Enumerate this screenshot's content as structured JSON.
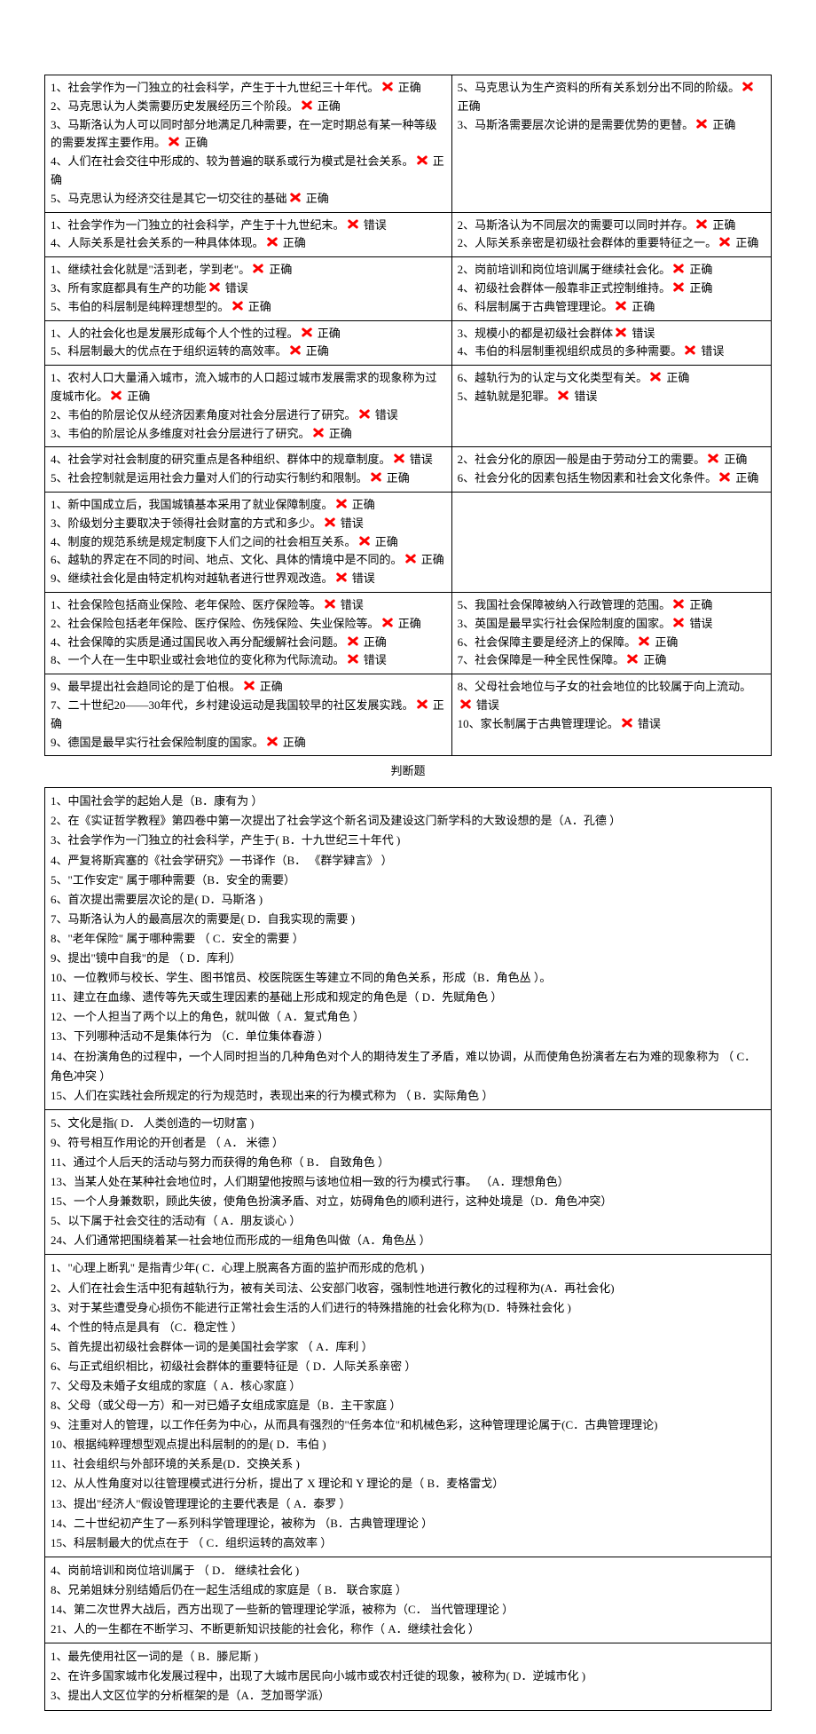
{
  "caption": "判断题",
  "mark_color": "#ff0000",
  "tf_answers": {
    "t": "正确",
    "f": "错误"
  },
  "tf_blocks": [
    {
      "left": [
        {
          "n": "1",
          "t": "社会学作为一门独立的社会科学，产生于十九世纪三十年代。",
          "a": "t"
        },
        {
          "n": "2",
          "t": "马克思认为人类需要历史发展经历三个阶段。",
          "a": "t"
        },
        {
          "n": "3",
          "t": "马斯洛认为人可以同时部分地满足几种需要，在一定时期总有某一种等级的需要发挥主要作用。",
          "a": "t"
        },
        {
          "n": "4",
          "t": "人们在社会交往中形成的、较为普遍的联系或行为模式是社会关系。",
          "a": "t"
        },
        {
          "n": "5",
          "t": "马克思认为经济交往是其它一切交往的基础",
          "a": "t"
        }
      ],
      "right": [
        {
          "n": "5",
          "t": "马克思认为生产资料的所有关系划分出不同的阶级。",
          "a": "t"
        },
        {
          "n": "3",
          "t": "马斯洛需要层次论讲的是需要优势的更替。",
          "a": "t"
        }
      ]
    },
    {
      "left": [
        {
          "n": "1",
          "t": "社会学作为一门独立的社会科学，产生于十九世纪末。",
          "a": "f"
        },
        {
          "n": "4",
          "t": "人际关系是社会关系的一种具体体现。",
          "a": "t"
        }
      ],
      "right": [
        {
          "n": "2",
          "t": "马斯洛认为不同层次的需要可以同时并存。",
          "a": "t"
        },
        {
          "n": "2",
          "t": "人际关系亲密是初级社会群体的重要特征之一。",
          "a": "t"
        }
      ]
    },
    {
      "left": [
        {
          "n": "1",
          "t": "继续社会化就是\"活到老，学到老\"。",
          "a": "t"
        },
        {
          "n": "3",
          "t": "所有家庭都具有生产的功能",
          "a": "f"
        },
        {
          "n": "5",
          "t": "韦伯的科层制是纯粹理想型的。",
          "a": "t"
        }
      ],
      "right": [
        {
          "n": "2",
          "t": "岗前培训和岗位培训属于继续社会化。",
          "a": "t"
        },
        {
          "n": "4",
          "t": "初级社会群体一般靠非正式控制维持。",
          "a": "t"
        },
        {
          "n": "6",
          "t": "科层制属于古典管理理论。",
          "a": "t"
        }
      ]
    },
    {
      "left": [
        {
          "n": "1",
          "t": "人的社会化也是发展形成每个人个性的过程。",
          "a": "t"
        },
        {
          "n": "5",
          "t": "科层制最大的优点在于组织运转的高效率。",
          "a": "t"
        }
      ],
      "right": [
        {
          "n": "3",
          "t": "规模小的都是初级社会群体",
          "a": "f"
        },
        {
          "n": "4",
          "t": "韦伯的科层制重视组织成员的多种需要。",
          "a": "f"
        }
      ]
    },
    {
      "left": [
        {
          "n": "1",
          "t": "农村人口大量涌入城市，流入城市的人口超过城市发展需求的现象称为过度城市化。",
          "a": "t"
        },
        {
          "n": "2",
          "t": "韦伯的阶层论仅从经济因素角度对社会分层进行了研究。",
          "a": "f"
        },
        {
          "n": "3",
          "t": "韦伯的阶层论从多维度对社会分层进行了研究。",
          "a": "t"
        }
      ],
      "right": [
        {
          "n": "6",
          "t": "越轨行为的认定与文化类型有关。",
          "a": "t"
        },
        {
          "n": "5",
          "t": "越轨就是犯罪。",
          "a": "f"
        }
      ]
    },
    {
      "left": [
        {
          "n": "4",
          "t": "社会学对社会制度的研究重点是各种组织、群体中的规章制度。",
          "a": "f"
        },
        {
          "n": "5",
          "t": "社会控制就是运用社会力量对人们的行动实行制约和限制。",
          "a": "t"
        }
      ],
      "right": [
        {
          "n": "2",
          "t": "社会分化的原因一般是由于劳动分工的需要。",
          "a": "t"
        },
        {
          "n": "6",
          "t": "社会分化的因素包括生物因素和社会文化条件。",
          "a": "t"
        }
      ]
    },
    {
      "left": [
        {
          "n": "1",
          "t": "新中国成立后，我国城镇基本采用了就业保障制度。",
          "a": "t"
        },
        {
          "n": "3",
          "t": "阶级划分主要取决于领得社会财富的方式和多少。",
          "a": "f"
        },
        {
          "n": "4",
          "t": "制度的规范系统是规定制度下人们之间的社会相互关系。",
          "a": "t"
        },
        {
          "n": "6",
          "t": "越轨的界定在不同的时间、地点、文化、具体的情境中是不同的。",
          "a": "t"
        },
        {
          "n": "9",
          "t": "继续社会化是由特定机构对越轨者进行世界观改造。",
          "a": "f"
        }
      ],
      "right": []
    },
    {
      "left": [
        {
          "n": "1",
          "t": "社会保险包括商业保险、老年保险、医疗保险等。",
          "a": "f"
        },
        {
          "n": "2",
          "t": "社会保险包括老年保险、医疗保险、伤残保险、失业保险等。",
          "a": "t"
        },
        {
          "n": "4",
          "t": "社会保障的实质是通过国民收入再分配缓解社会问题。",
          "a": "t"
        },
        {
          "n": "8",
          "t": "一个人在一生中职业或社会地位的变化称为代际流动。",
          "a": "f"
        }
      ],
      "right": [
        {
          "n": "5",
          "t": "我国社会保障被纳入行政管理的范围。",
          "a": "t"
        },
        {
          "n": "3",
          "t": "英国是最早实行社会保险制度的国家。",
          "a": "f"
        },
        {
          "n": "6",
          "t": "社会保障主要是经济上的保障。",
          "a": "t"
        },
        {
          "n": "7",
          "t": "社会保障是一种全民性保障。",
          "a": "t"
        }
      ]
    },
    {
      "left": [
        {
          "n": "9",
          "t": "最早提出社会趋同论的是丁伯根。",
          "a": "t"
        },
        {
          "n": "7",
          "t": "二十世纪20——30年代，乡村建设运动是我国较早的社区发展实践。",
          "a": "t"
        },
        {
          "n": "9",
          "t": "德国是最早实行社会保险制度的国家。",
          "a": "t"
        }
      ],
      "right": [
        {
          "n": "8",
          "t": "父母社会地位与子女的社会地位的比较属于向上流动。",
          "a": "f"
        },
        {
          "n": "10",
          "t": "家长制属于古典管理理论。",
          "a": "f"
        }
      ]
    }
  ],
  "mc_blocks": [
    [
      {
        "n": "1",
        "t": "中国社会学的起始人是（B．康有为  ）"
      },
      {
        "n": "2",
        "t": "在《实证哲学教程》第四卷中第一次提出了社会学这个新名词及建设这门新学科的大致设想的是（A．孔德  ）"
      },
      {
        "n": "3",
        "t": "社会学作为一门独立的社会科学，产生于( B．十九世纪三十年代  )"
      },
      {
        "n": "4",
        "t": "严复将斯宾塞的《社会学研究》一书译作（B．  《群学肄言》  ）"
      },
      {
        "n": "5",
        "t": "\"工作安定\" 属于哪种需要（B．安全的需要）"
      },
      {
        "n": "6",
        "t": "首次提出需要层次论的是( D．马斯洛  )"
      },
      {
        "n": "7",
        "t": "马斯洛认为人的最高层次的需要是( D．自我实现的需要   )"
      },
      {
        "n": "8",
        "t": "\"老年保险\" 属于哪种需要  （ C．安全的需要  ）"
      },
      {
        "n": "9",
        "t": "提出\"镜中自我\"的是 （  D．库利）"
      },
      {
        "n": "10",
        "t": "一位教师与校长、学生、图书馆员、校医院医生等建立不同的角色关系，形成（B．角色丛  ）。"
      },
      {
        "n": "11",
        "t": "建立在血缘、遗传等先天或生理因素的基础上形成和规定的角色是（ D．先赋角色   ）"
      },
      {
        "n": "12",
        "t": "一个人担当了两个以上的角色，就叫做（  A．复式角色  ）"
      },
      {
        "n": "13",
        "t": "下列哪种活动不是集体行为 （C．单位集体春游  ）"
      },
      {
        "n": "14",
        "t": "在扮演角色的过程中，一个人同时担当的几种角色对个人的期待发生了矛盾，难以协调，从而使角色扮演者左右为难的现象称为  （ C．角色冲突 ）"
      },
      {
        "n": "15",
        "t": "人们在实践社会所规定的行为规范时，表现出来的行为模式称为 （ B．实际角色   ）"
      }
    ],
    [
      {
        "n": "5",
        "t": "文化是指( D．  人类创造的一切财富   )"
      },
      {
        "n": "9",
        "t": "符号相互作用论的开创者是 （ A．  米德    ）"
      },
      {
        "n": "11",
        "t": "通过个人后天的活动与努力而获得的角色称（ B．  自致角色  ）"
      },
      {
        "n": "13",
        "t": "当某人处在某种社会地位时，人们期望他按照与该地位相一致的行为模式行事。 （A．理想角色）"
      },
      {
        "n": "15",
        "t": "一个人身兼数职，顾此失彼，使角色扮演矛盾、对立，妨碍角色的顺利进行，这种处境是（D．角色冲突）"
      },
      {
        "n": "5",
        "t": "以下属于社会交往的活动有（ A．朋友谈心  ）"
      },
      {
        "n": "24",
        "t": "人们通常把围绕着某一社会地位而形成的一组角色叫做（A．角色丛  ）"
      }
    ],
    [
      {
        "n": "1",
        "t": "\"心理上断乳\" 是指青少年( C．心理上脱离各方面的监护而形成的危机  )"
      },
      {
        "n": "2",
        "t": "人们在社会生活中犯有越轨行为，被有关司法、公安部门收容，强制性地进行教化的过程称为(A．再社会化)"
      },
      {
        "n": "3",
        "t": "对于某些遭受身心损伤不能进行正常社会生活的人们进行的特殊措施的社会化称为(D．特殊社会化  )"
      },
      {
        "n": "4",
        "t": "个性的特点是具有 （C．稳定性  ）"
      },
      {
        "n": "5",
        "t": "首先提出初级社会群体一词的是美国社会学家 （ A．库利  ）"
      },
      {
        "n": "6",
        "t": "与正式组织相比，初级社会群体的重要特征是（ D．人际关系亲密  ）"
      },
      {
        "n": "7",
        "t": "父母及未婚子女组成的家庭（ A．核心家庭   ）"
      },
      {
        "n": "8",
        "t": "父母（或父母一方）和一对已婚子女组成家庭是（B．主干家庭   ）"
      },
      {
        "n": "9",
        "t": "注重对人的管理，以工作任务为中心，从而具有强烈的\"任务本位\"和机械色彩，这种管理理论属于(C．古典管理理论)"
      },
      {
        "n": "10",
        "t": "根据纯粹理想型观点提出科层制的的是( D．韦伯   )"
      },
      {
        "n": "11",
        "t": "社会组织与外部环境的关系是(D．交换关系  )"
      },
      {
        "n": "12",
        "t": "从人性角度对以往管理模式进行分析，提出了 X 理论和 Y 理论的是（ B．麦格雷戈）"
      },
      {
        "n": "13",
        "t": "提出\"经济人\"假设管理理论的主要代表是（ A．泰罗    ）"
      },
      {
        "n": "14",
        "t": "二十世纪初产生了一系列科学管理理论，被称为 （B．古典管理理论  ）"
      },
      {
        "n": "15",
        "t": "科层制最大的优点在于 （  C．组织运转的高效率     ）"
      }
    ],
    [
      {
        "n": "4",
        "t": "岗前培训和岗位培训属于 （  D．   继续社会化     )"
      },
      {
        "n": "8",
        "t": "兄弟姐妹分别结婚后仍在一起生活组成的家庭是（ B．  联合家庭  ）"
      },
      {
        "n": "14",
        "t": "第二次世界大战后，西方出现了一些新的管理理论学派，被称为（C．  当代管理理论  ）"
      },
      {
        "n": "21",
        "t": "人的一生都在不断学习、不断更新知识技能的社会化，称作（ A．继续社会化  ）"
      }
    ],
    [
      {
        "n": "1",
        "t": "最先使用社区一词的是（ B．滕尼斯 )"
      },
      {
        "n": "2",
        "t": "在许多国家城市化发展过程中，出现了大城市居民向小城市或农村迁徙的现象，被称为( D．逆城市化   )"
      },
      {
        "n": "3",
        "t": "提出人文区位学的分析框架的是（A．芝加哥学派）"
      }
    ]
  ]
}
